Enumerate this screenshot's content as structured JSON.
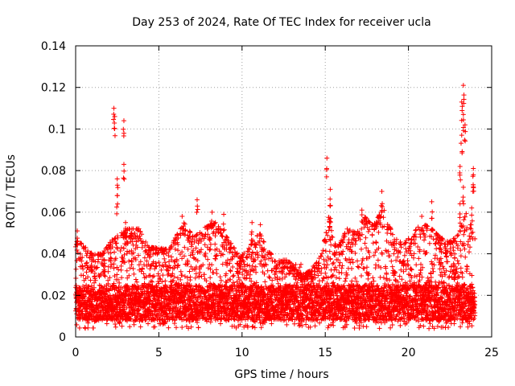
{
  "chart_data": {
    "type": "scatter",
    "title": "Day 253 of 2024, Rate Of TEC Index for receiver ucla",
    "xlabel": "GPS time / hours",
    "ylabel": "ROTI / TECUs",
    "xlim": [
      0,
      25
    ],
    "ylim": [
      0,
      0.14
    ],
    "xticks": [
      "0",
      "5",
      "10",
      "15",
      "20",
      "25"
    ],
    "yticks": [
      "0",
      "0.02",
      "0.04",
      "0.06",
      "0.08",
      "0.1",
      "0.12",
      "0.14"
    ],
    "grid": true,
    "marker": "+",
    "color": "#ff0000",
    "series": [
      {
        "name": "ROTI",
        "x_range": [
          0,
          24
        ],
        "typical_band": [
          0.008,
          0.025
        ],
        "spikes": [
          {
            "x": 0.1,
            "y": 0.051
          },
          {
            "x": 2.3,
            "y": 0.11
          },
          {
            "x": 2.35,
            "y": 0.106
          },
          {
            "x": 2.9,
            "y": 0.104
          },
          {
            "x": 2.9,
            "y": 0.083
          },
          {
            "x": 2.5,
            "y": 0.076
          },
          {
            "x": 2.5,
            "y": 0.068
          },
          {
            "x": 3.0,
            "y": 0.055
          },
          {
            "x": 6.4,
            "y": 0.058
          },
          {
            "x": 7.3,
            "y": 0.066
          },
          {
            "x": 8.2,
            "y": 0.06
          },
          {
            "x": 8.9,
            "y": 0.059
          },
          {
            "x": 10.6,
            "y": 0.055
          },
          {
            "x": 11.1,
            "y": 0.054
          },
          {
            "x": 15.1,
            "y": 0.086
          },
          {
            "x": 15.3,
            "y": 0.071
          },
          {
            "x": 15.3,
            "y": 0.063
          },
          {
            "x": 17.2,
            "y": 0.061
          },
          {
            "x": 18.4,
            "y": 0.07
          },
          {
            "x": 20.8,
            "y": 0.058
          },
          {
            "x": 21.4,
            "y": 0.065
          },
          {
            "x": 23.3,
            "y": 0.121
          },
          {
            "x": 23.2,
            "y": 0.113
          },
          {
            "x": 23.3,
            "y": 0.107
          },
          {
            "x": 23.4,
            "y": 0.102
          },
          {
            "x": 23.2,
            "y": 0.097
          },
          {
            "x": 23.1,
            "y": 0.082
          },
          {
            "x": 23.3,
            "y": 0.072
          },
          {
            "x": 23.1,
            "y": 0.064
          },
          {
            "x": 23.9,
            "y": 0.081
          },
          {
            "x": 23.9,
            "y": 0.078
          },
          {
            "x": 23.8,
            "y": 0.062
          }
        ],
        "local_peaks": [
          {
            "x": 0.2,
            "y": 0.046
          },
          {
            "x": 1.0,
            "y": 0.04
          },
          {
            "x": 1.6,
            "y": 0.04
          },
          {
            "x": 2.2,
            "y": 0.047
          },
          {
            "x": 3.1,
            "y": 0.052
          },
          {
            "x": 3.8,
            "y": 0.052
          },
          {
            "x": 4.4,
            "y": 0.043
          },
          {
            "x": 5.0,
            "y": 0.043
          },
          {
            "x": 5.6,
            "y": 0.042
          },
          {
            "x": 6.5,
            "y": 0.055
          },
          {
            "x": 7.1,
            "y": 0.048
          },
          {
            "x": 7.8,
            "y": 0.053
          },
          {
            "x": 8.4,
            "y": 0.055
          },
          {
            "x": 9.2,
            "y": 0.047
          },
          {
            "x": 9.9,
            "y": 0.038
          },
          {
            "x": 10.4,
            "y": 0.045
          },
          {
            "x": 11.1,
            "y": 0.05
          },
          {
            "x": 11.6,
            "y": 0.041
          },
          {
            "x": 12.2,
            "y": 0.037
          },
          {
            "x": 12.8,
            "y": 0.037
          },
          {
            "x": 13.5,
            "y": 0.03
          },
          {
            "x": 14.2,
            "y": 0.032
          },
          {
            "x": 14.8,
            "y": 0.04
          },
          {
            "x": 15.2,
            "y": 0.058
          },
          {
            "x": 15.7,
            "y": 0.042
          },
          {
            "x": 16.3,
            "y": 0.052
          },
          {
            "x": 16.9,
            "y": 0.05
          },
          {
            "x": 17.4,
            "y": 0.058
          },
          {
            "x": 17.9,
            "y": 0.054
          },
          {
            "x": 18.5,
            "y": 0.062
          },
          {
            "x": 19.1,
            "y": 0.048
          },
          {
            "x": 19.7,
            "y": 0.045
          },
          {
            "x": 20.3,
            "y": 0.05
          },
          {
            "x": 20.8,
            "y": 0.055
          },
          {
            "x": 21.4,
            "y": 0.052
          },
          {
            "x": 21.9,
            "y": 0.048
          },
          {
            "x": 22.4,
            "y": 0.046
          },
          {
            "x": 22.9,
            "y": 0.048
          },
          {
            "x": 23.5,
            "y": 0.06
          },
          {
            "x": 23.9,
            "y": 0.05
          }
        ]
      }
    ]
  }
}
